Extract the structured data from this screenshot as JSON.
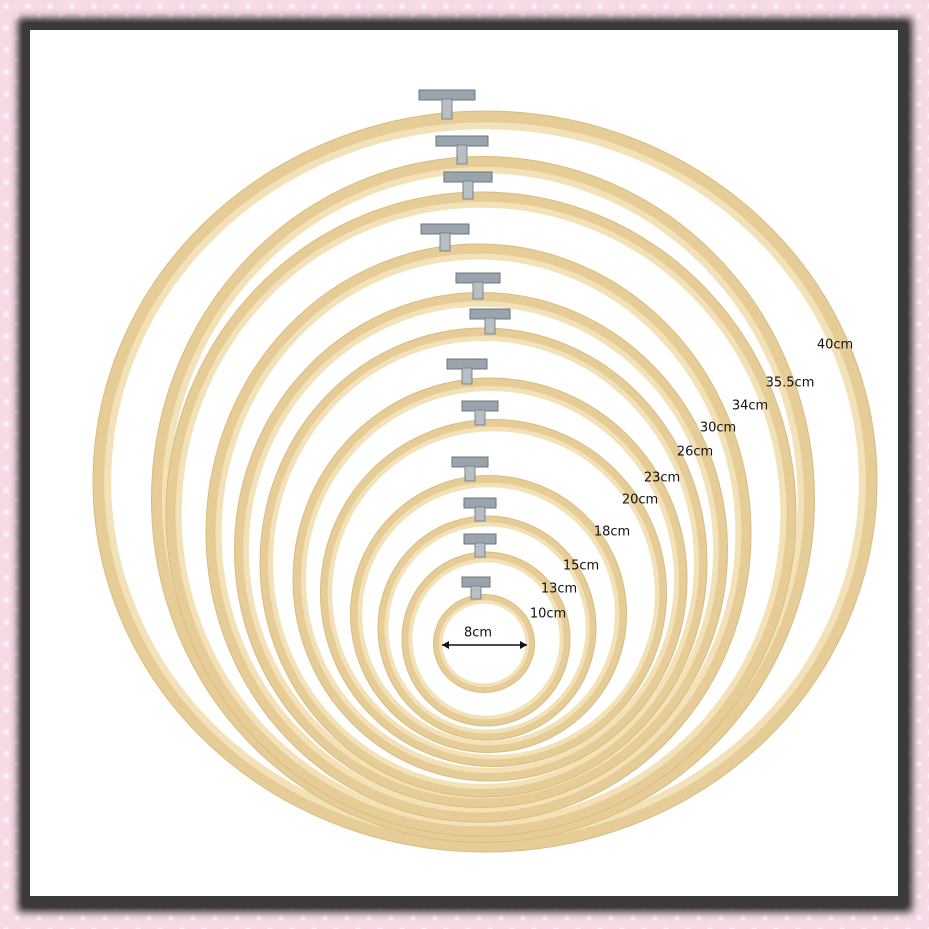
{
  "labels": [
    "40cm",
    "35.5cm",
    "34cm",
    "30cm",
    "26cm",
    "23cm",
    "20cm",
    "18cm",
    "15cm",
    "13cm",
    "10cm",
    "8cm"
  ]
}
